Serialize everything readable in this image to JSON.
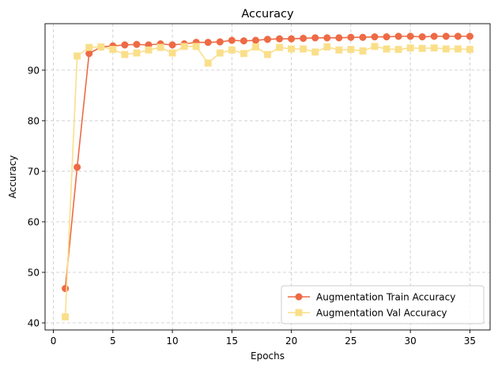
{
  "chart_data": {
    "type": "line",
    "title": "Accuracy",
    "xlabel": "Epochs",
    "ylabel": "Accuracy",
    "xlim": [
      -0.7,
      36.7
    ],
    "ylim": [
      38.6,
      99.2
    ],
    "xticks": [
      0,
      5,
      10,
      15,
      20,
      25,
      30,
      35
    ],
    "yticks": [
      40,
      50,
      60,
      70,
      80,
      90
    ],
    "grid": true,
    "legend_position": "lower-right",
    "x": [
      1,
      2,
      3,
      4,
      5,
      6,
      7,
      8,
      9,
      10,
      11,
      12,
      13,
      14,
      15,
      16,
      17,
      18,
      19,
      20,
      21,
      22,
      23,
      24,
      25,
      26,
      27,
      28,
      29,
      30,
      31,
      32,
      33,
      34,
      35
    ],
    "series": [
      {
        "name": "Augmentation Train Accuracy",
        "color": "#ee6a45",
        "marker": "circle",
        "values": [
          46.8,
          70.8,
          93.3,
          94.6,
          94.8,
          95.0,
          95.1,
          95.0,
          95.2,
          95.0,
          95.2,
          95.5,
          95.5,
          95.6,
          95.9,
          95.8,
          95.9,
          96.1,
          96.2,
          96.2,
          96.3,
          96.4,
          96.4,
          96.4,
          96.5,
          96.5,
          96.6,
          96.6,
          96.7,
          96.7,
          96.6,
          96.7,
          96.7,
          96.7,
          96.7
        ]
      },
      {
        "name": "Augmentation Val Accuracy",
        "color": "#fadf8a",
        "marker": "square",
        "values": [
          41.2,
          92.8,
          94.5,
          94.6,
          94.1,
          93.1,
          93.4,
          94.0,
          94.5,
          93.4,
          94.7,
          94.7,
          91.4,
          93.4,
          94.0,
          93.3,
          94.6,
          93.1,
          94.5,
          94.2,
          94.2,
          93.6,
          94.6,
          94.0,
          94.1,
          93.8,
          94.7,
          94.2,
          94.1,
          94.4,
          94.3,
          94.4,
          94.2,
          94.2,
          94.1
        ]
      }
    ]
  }
}
